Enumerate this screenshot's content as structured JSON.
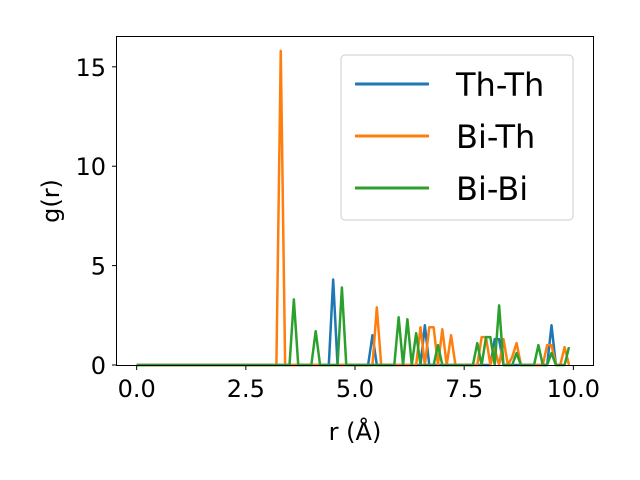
{
  "chart_data": {
    "type": "line",
    "xlabel": "r (Å)",
    "ylabel": "g(r)",
    "xlim": [
      -0.45,
      10.45
    ],
    "ylim": [
      0,
      16.5
    ],
    "xticks": [
      0.0,
      2.5,
      5.0,
      7.5,
      10.0
    ],
    "xtick_labels": [
      "0.0",
      "2.5",
      "5.0",
      "7.5",
      "10.0"
    ],
    "yticks": [
      0,
      5,
      10,
      15
    ],
    "ytick_labels": [
      "0",
      "5",
      "10",
      "15"
    ],
    "grid": false,
    "legend_position": "top-right",
    "series": [
      {
        "name": "Th-Th",
        "color": "#1f77b4",
        "x": [
          0.0,
          4.4,
          4.5,
          4.6,
          5.3,
          5.4,
          5.5,
          6.5,
          6.6,
          6.7,
          8.1,
          8.2,
          8.3,
          8.4,
          9.4,
          9.5,
          9.6
        ],
        "y": [
          0,
          0,
          4.3,
          0,
          0,
          1.5,
          0,
          0,
          2.0,
          0,
          0,
          1.3,
          1.3,
          0,
          0,
          2.0,
          0
        ]
      },
      {
        "name": "Bi-Th",
        "color": "#ff7f0e",
        "x": [
          0.0,
          3.2,
          3.3,
          3.4,
          5.4,
          5.5,
          5.6,
          6.4,
          6.5,
          6.6,
          6.7,
          6.8,
          6.9,
          7.0,
          7.1,
          7.2,
          7.3,
          7.8,
          7.9,
          8.0,
          8.1,
          8.2,
          8.3,
          8.4,
          8.5,
          8.6,
          8.7,
          8.8,
          8.9,
          9.3,
          9.4,
          9.5,
          9.6,
          9.7,
          9.8,
          9.9
        ],
        "y": [
          0,
          0,
          15.8,
          0,
          0,
          2.9,
          0,
          0,
          1.9,
          0,
          1.9,
          1.9,
          0,
          1.8,
          0,
          1.5,
          0,
          0,
          1.4,
          1.4,
          0,
          0.8,
          0,
          1.3,
          0,
          0.4,
          1.1,
          0,
          0,
          0,
          1.0,
          1.0,
          0,
          0,
          0.9,
          0
        ]
      },
      {
        "name": "Bi-Bi",
        "color": "#2ca02c",
        "x": [
          0.0,
          3.5,
          3.6,
          3.7,
          4.0,
          4.1,
          4.2,
          4.6,
          4.7,
          4.8,
          5.9,
          6.0,
          6.1,
          6.2,
          6.3,
          6.4,
          6.5,
          6.6,
          6.8,
          6.9,
          7.0,
          7.7,
          7.8,
          7.9,
          8.0,
          8.1,
          8.2,
          8.3,
          8.4,
          8.6,
          8.7,
          8.8,
          9.0,
          9.1,
          9.2,
          9.3,
          9.4,
          9.5,
          9.6,
          9.7,
          9.8,
          9.9
        ],
        "y": [
          0,
          0,
          3.3,
          0,
          0,
          1.7,
          0,
          0,
          3.9,
          0,
          0,
          2.4,
          0,
          2.3,
          0,
          1.6,
          0,
          0,
          0,
          1.0,
          0,
          0,
          1.1,
          0,
          1.4,
          1.4,
          0,
          3.0,
          0,
          0,
          0.6,
          0,
          0,
          0,
          1.0,
          0,
          0,
          0.6,
          0,
          0,
          0,
          0.9
        ]
      }
    ]
  }
}
